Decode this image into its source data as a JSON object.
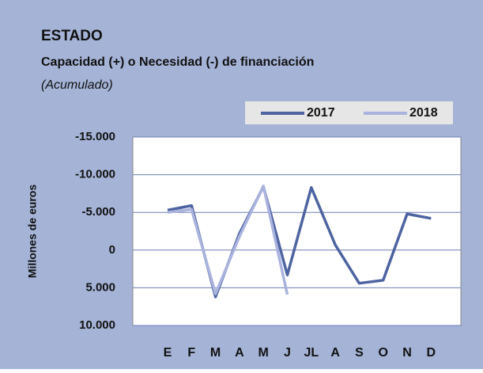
{
  "chart_data": {
    "type": "line",
    "title": "ESTADO",
    "subtitle": "Capacidad (+) o Necesidad (-) de financiación",
    "note": "(Acumulado)",
    "y_label": "Millones de euros",
    "categories": [
      "E",
      "F",
      "M",
      "A",
      "M",
      "J",
      "JL",
      "A",
      "S",
      "O",
      "N",
      "D"
    ],
    "series": [
      {
        "name": "2017",
        "color": "#4e64a0",
        "values": [
          -5300,
          -5900,
          6200,
          -2200,
          -8400,
          3300,
          -8300,
          -700,
          4400,
          4000,
          -4800,
          -4200
        ]
      },
      {
        "name": "2018",
        "color": "#a9b3de",
        "values": [
          -5000,
          -5400,
          5800,
          -1800,
          -8500,
          5900,
          null,
          null,
          null,
          null,
          null,
          null
        ]
      }
    ],
    "ylim": [
      -15000,
      10000
    ],
    "y_inverted": true,
    "yticks": [
      {
        "value": -15000,
        "label": "-15.000"
      },
      {
        "value": -10000,
        "label": "-10.000"
      },
      {
        "value": -5000,
        "label": "-5.000"
      },
      0,
      {
        "value": 5000,
        "label": "5.000"
      },
      {
        "value": 10000,
        "label": "10.000"
      }
    ],
    "grid": true,
    "legend": "top-right"
  }
}
